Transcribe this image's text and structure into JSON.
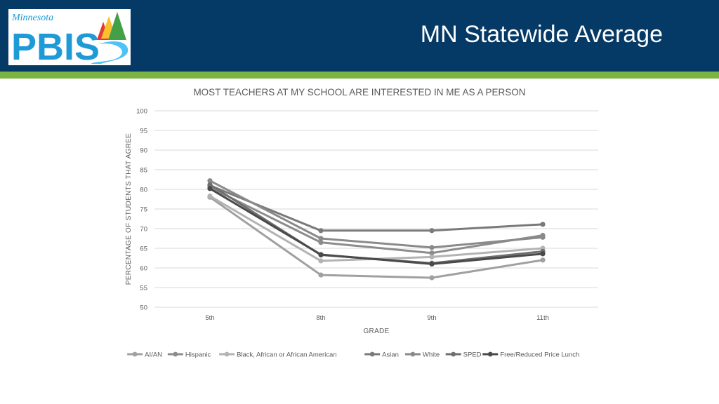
{
  "header": {
    "title": "MN Statewide Average",
    "logo": {
      "script": "Minnesota",
      "word": "PBIS"
    }
  },
  "colors": {
    "header_bg": "#063a66",
    "accent_bar": "#7cb342",
    "logo_text": "#1e9ad6"
  },
  "chart_data": {
    "type": "line",
    "title": "MOST TEACHERS AT MY SCHOOL ARE INTERESTED IN ME AS A PERSON",
    "xlabel": "GRADE",
    "ylabel": "PERCENTAGE OF STUDENTS THAT AGREE",
    "categories": [
      "5th",
      "8th",
      "9th",
      "11th"
    ],
    "ylim": [
      50,
      100
    ],
    "yticks": [
      50,
      55,
      60,
      65,
      70,
      75,
      80,
      85,
      90,
      95,
      100
    ],
    "grid": true,
    "legend_position": "bottom",
    "series": [
      {
        "name": "AI/AN",
        "values": [
          78.0,
          58.2,
          57.5,
          62.0
        ],
        "color": "#a0a0a0"
      },
      {
        "name": "Hispanic",
        "values": [
          80.5,
          66.5,
          63.8,
          68.3
        ],
        "color": "#8c8c8c"
      },
      {
        "name": "Black, African or African American",
        "values": [
          78.3,
          61.8,
          62.8,
          65.0
        ],
        "color": "#b3b3b3"
      },
      {
        "name": "Asian",
        "values": [
          81.0,
          69.5,
          69.5,
          71.1
        ],
        "color": "#7a7a7a"
      },
      {
        "name": "White",
        "values": [
          82.2,
          67.5,
          65.2,
          67.8
        ],
        "color": "#8a8a8a"
      },
      {
        "name": "SPED",
        "values": [
          81.2,
          63.3,
          61.2,
          64.2
        ],
        "color": "#6f6f6f"
      },
      {
        "name": "Free/Reduced Price Lunch",
        "values": [
          80.2,
          63.4,
          61.0,
          63.6
        ],
        "color": "#4a4a4a"
      }
    ]
  }
}
